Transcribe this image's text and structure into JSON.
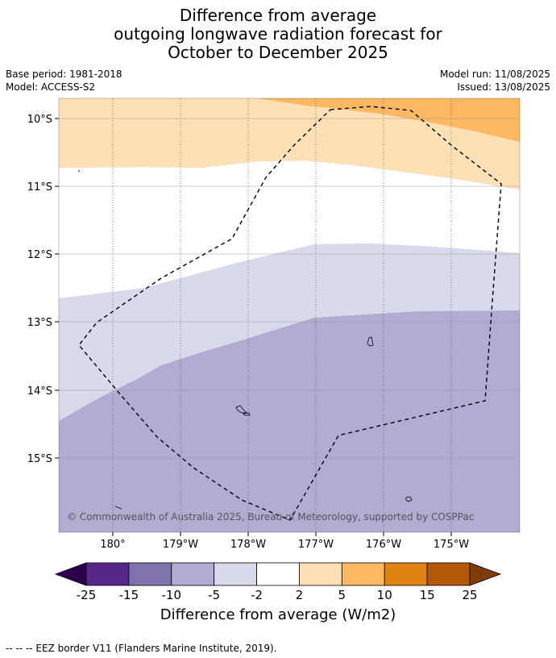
{
  "title": {
    "line1": "Difference from average",
    "line2": "outgoing longwave radiation forecast for",
    "line3": "October to December 2025"
  },
  "meta": {
    "base_period": "Base period: 1981-2018",
    "model": "Model: ACCESS-S2",
    "model_run": "Model run: 11/08/2025",
    "issued": "Issued: 13/08/2025"
  },
  "map": {
    "lat_labels": [
      "10°S",
      "11°S",
      "12°S",
      "13°S",
      "14°S",
      "15°S"
    ],
    "lon_labels": [
      "180°",
      "179°W",
      "178°W",
      "177°W",
      "176°W",
      "175°W"
    ],
    "copyright": "© Commonwealth of Australia 2025, Bureau of Meteorology, supported by COSPPac",
    "colors": {
      "pos_2_5": "#fee0b6",
      "pos_5_10": "#fdb863",
      "neg_2_5": "#d8daeb",
      "neg_5_10": "#b2abd2",
      "neutral": "#ffffff"
    }
  },
  "colorbar": {
    "title": "Difference from average (W/m2)",
    "ticks": [
      "-25",
      "-15",
      "-10",
      "-5",
      "-2",
      "2",
      "5",
      "10",
      "15",
      "25"
    ],
    "colors": [
      "#542788",
      "#8073ac",
      "#b2abd2",
      "#d8daeb",
      "#ffffff",
      "#fee0b6",
      "#fdb863",
      "#e08214",
      "#b35806"
    ],
    "under_color": "#2d004b",
    "over_color": "#7f3b08"
  },
  "footnote": "--  --  -- EEZ border V11 (Flanders Marine Institute, 2019)."
}
